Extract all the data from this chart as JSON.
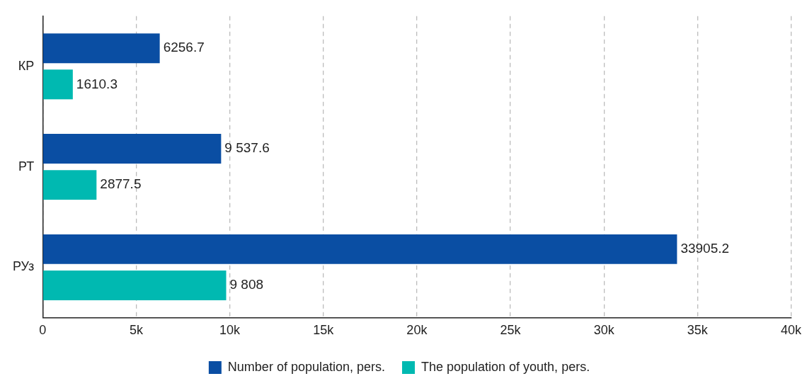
{
  "chart_data": {
    "type": "bar",
    "orientation": "horizontal",
    "categories": [
      "КР",
      "РТ",
      "РУз"
    ],
    "series": [
      {
        "name": "Number of population, pers.",
        "color": "#0a4ea3",
        "values": [
          6256.7,
          9537.6,
          33905.2
        ],
        "value_labels": [
          "6256.7",
          "9 537.6",
          "33905.2"
        ]
      },
      {
        "name": "The population of youth, pers.",
        "color": "#00b9b1",
        "values": [
          1610.3,
          2877.5,
          9808
        ],
        "value_labels": [
          "1610.3",
          "2877.5",
          "9 808"
        ]
      }
    ],
    "xlim": [
      0,
      40000
    ],
    "xticks": [
      0,
      {
        "value": 5000,
        "label": "5k"
      },
      {
        "value": 10000,
        "label": "10k"
      },
      {
        "value": 15000,
        "label": "15k"
      },
      {
        "value": 20000,
        "label": "20k"
      },
      {
        "value": 25000,
        "label": "25k"
      },
      {
        "value": 30000,
        "label": "30k"
      },
      {
        "value": 35000,
        "label": "35k"
      },
      {
        "value": 40000,
        "label": "40k"
      }
    ],
    "grid": "x",
    "legend": "bottom"
  }
}
